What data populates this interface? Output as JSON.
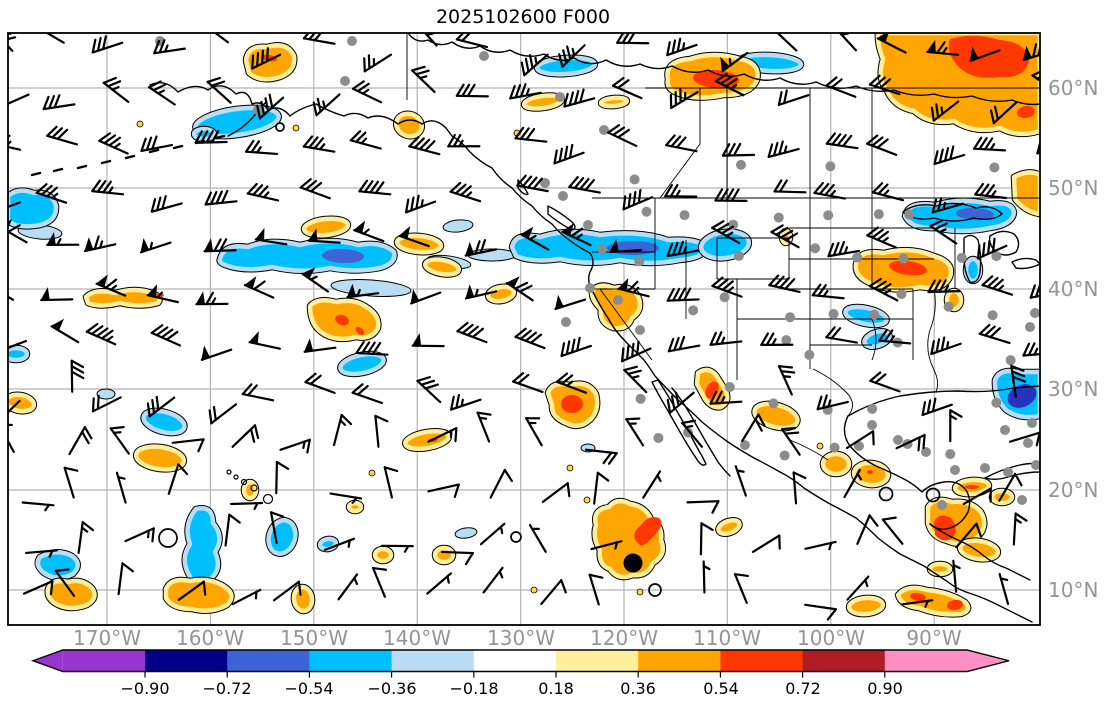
{
  "title": "2025102600 F000",
  "axes": {
    "lat_tick_labels": [
      "60°N",
      "50°N",
      "40°N",
      "30°N",
      "20°N",
      "10°N"
    ],
    "lon_tick_labels": [
      "170°W",
      "160°W",
      "150°W",
      "140°W",
      "130°W",
      "120°W",
      "110°W",
      "100°W",
      "90°W"
    ],
    "tick_label_color": "#949494"
  },
  "colorbar": {
    "tick_labels": [
      "−0.90",
      "−0.72",
      "−0.54",
      "−0.36",
      "−0.18",
      "0.18",
      "0.36",
      "0.54",
      "0.72",
      "0.90"
    ],
    "band_colors": [
      "#9a35cf",
      "#00008b",
      "#3c64d4",
      "#00bfff",
      "#b8ddf5",
      "#ffffff",
      "#ffef9c",
      "#ffa502",
      "#ff3801",
      "#b01c24",
      "#ff90c3"
    ],
    "extend_below_color": "#9a35cf",
    "extend_above_color": "#ff90c3",
    "outline_color": "#000000",
    "label_color": "#000000"
  },
  "map_style": {
    "background": "#ffffff",
    "grid_color": "#b5b5b5",
    "frame_color": "#000000",
    "coastline_color": "#000000",
    "state_border_color": "#000000",
    "wind_barb_color": "#000000",
    "station_dot_color": "#8c8c8c",
    "calm_circle_color": "#000000",
    "max_point_color": "#000000",
    "positive_fill": "#ffa502",
    "positive_fringe": "#ffef9c",
    "positive_core": "#ff3801",
    "negative_fill": "#00bfff",
    "negative_fringe": "#b8ddf5",
    "negative_core": "#3c64d4"
  }
}
